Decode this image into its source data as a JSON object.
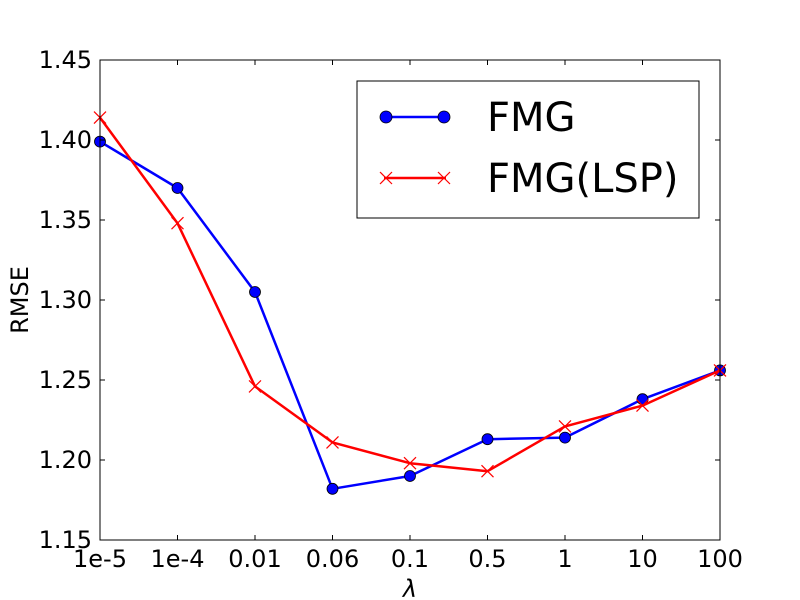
{
  "chart_data": {
    "type": "line",
    "categories": [
      "1e-5",
      "1e-4",
      "0.01",
      "0.06",
      "0.1",
      "0.5",
      "1",
      "10",
      "100"
    ],
    "xlabel": "λ",
    "ylabel": "RMSE",
    "ylim": [
      1.15,
      1.45
    ],
    "yticks": [
      "1.15",
      "1.20",
      "1.25",
      "1.30",
      "1.35",
      "1.40",
      "1.45"
    ],
    "grid": false,
    "legend_position": "top-right",
    "series": [
      {
        "name": "FMG",
        "color": "#0000ff",
        "marker": "circle",
        "values": [
          1.399,
          1.37,
          1.305,
          1.182,
          1.19,
          1.213,
          1.214,
          1.238,
          1.256
        ]
      },
      {
        "name": "FMG(LSP)",
        "color": "#ff0000",
        "marker": "x",
        "values": [
          1.414,
          1.348,
          1.246,
          1.211,
          1.198,
          1.193,
          1.221,
          1.234,
          1.256
        ]
      }
    ]
  }
}
